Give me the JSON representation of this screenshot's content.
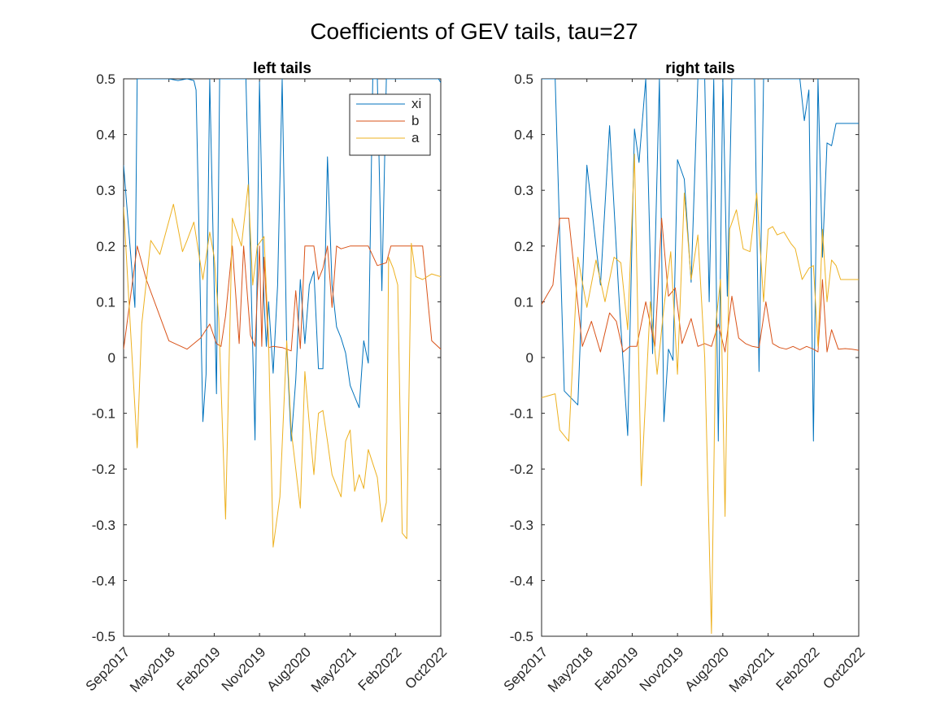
{
  "figure_title": "Coefficients of GEV tails, tau=27",
  "colors": {
    "xi": "#0072BD",
    "b": "#D95319",
    "a": "#EDB120",
    "axes": "#262626"
  },
  "chart_data": [
    {
      "type": "line",
      "title": "left tails",
      "xlabel": "",
      "ylabel": "",
      "ylim": [
        -0.5,
        0.5
      ],
      "yticks": [
        "-0.5",
        "-0.4",
        "-0.3",
        "-0.2",
        "-0.1",
        "0",
        "0.1",
        "0.2",
        "0.3",
        "0.4",
        "0.5"
      ],
      "xticks": [
        "Sep2017",
        "May2018",
        "Feb2019",
        "Nov2019",
        "Aug2020",
        "May2021",
        "Feb2022",
        "Oct2022"
      ],
      "legend": {
        "position": "top-right",
        "entries": [
          "xi",
          "b",
          "a"
        ]
      },
      "grid": false,
      "series": [
        {
          "name": "xi",
          "color": "#0072BD",
          "x": [
            0,
            0.17,
            0.25,
            0.3,
            0.5,
            0.8,
            1.0,
            1.2,
            1.4,
            1.55,
            1.6,
            1.75,
            1.82,
            1.9,
            2.05,
            2.12,
            2.2,
            2.3,
            2.4,
            2.5,
            2.7,
            2.9,
            3.0,
            3.1,
            3.15,
            3.2,
            3.3,
            3.4,
            3.5,
            3.6,
            3.7,
            3.8,
            3.9,
            4.0,
            4.1,
            4.2,
            4.3,
            4.4,
            4.5,
            4.6,
            4.7,
            4.8,
            4.9,
            5.0,
            5.1,
            5.2,
            5.3,
            5.4,
            5.5,
            5.6,
            5.7,
            5.8,
            5.9,
            6.0,
            6.1,
            6.2,
            6.25,
            6.3,
            6.4,
            6.5,
            6.6,
            6.7,
            6.8,
            6.95,
            7.0
          ],
          "y": [
            0.345,
            0.17,
            0.09,
            0.5,
            0.5,
            0.5,
            0.5,
            0.497,
            0.5,
            0.497,
            0.48,
            -0.115,
            -0.03,
            0.5,
            -0.065,
            0.5,
            0.5,
            0.5,
            0.5,
            0.5,
            0.5,
            -0.148,
            0.495,
            0.1,
            0.02,
            0.1,
            -0.028,
            0.13,
            0.5,
            0.02,
            -0.15,
            -0.04,
            0.14,
            0.025,
            0.13,
            0.155,
            -0.02,
            -0.02,
            0.36,
            0.13,
            0.055,
            0.035,
            0.008,
            -0.05,
            -0.07,
            -0.09,
            0.03,
            -0.01,
            0.5,
            0.5,
            0.12,
            0.5,
            0.5,
            0.5,
            0.5,
            0.5,
            0.5,
            0.5,
            0.5,
            0.5,
            0.5,
            0.5,
            0.5,
            0.5,
            0.493
          ]
        },
        {
          "name": "b",
          "color": "#D95319",
          "x": [
            0,
            0.3,
            0.5,
            1.0,
            1.4,
            1.7,
            1.9,
            2.05,
            2.15,
            2.25,
            2.4,
            2.55,
            2.65,
            2.8,
            2.9,
            3.0,
            3.05,
            3.1,
            3.2,
            3.3,
            3.5,
            3.7,
            3.8,
            3.9,
            4.0,
            4.1,
            4.2,
            4.3,
            4.4,
            4.5,
            4.6,
            4.7,
            4.8,
            5.0,
            5.2,
            5.4,
            5.6,
            5.8,
            5.9,
            6.0,
            6.1,
            6.2,
            6.4,
            6.6,
            6.8,
            7.0
          ],
          "y": [
            0.015,
            0.2,
            0.14,
            0.03,
            0.015,
            0.035,
            0.06,
            0.025,
            0.02,
            0.075,
            0.2,
            0.025,
            0.2,
            0.04,
            0.02,
            0.2,
            0.02,
            0.18,
            0.018,
            0.02,
            0.018,
            0.012,
            0.12,
            0.016,
            0.2,
            0.2,
            0.2,
            0.14,
            0.16,
            0.2,
            0.09,
            0.2,
            0.195,
            0.2,
            0.2,
            0.2,
            0.165,
            0.17,
            0.2,
            0.2,
            0.2,
            0.2,
            0.2,
            0.2,
            0.03,
            0.015
          ]
        },
        {
          "name": "a",
          "color": "#EDB120",
          "x": [
            0,
            0.3,
            0.4,
            0.6,
            0.8,
            1.1,
            1.3,
            1.4,
            1.55,
            1.75,
            1.9,
            2.0,
            2.1,
            2.25,
            2.4,
            2.6,
            2.75,
            2.85,
            2.95,
            3.1,
            3.2,
            3.3,
            3.45,
            3.6,
            3.7,
            3.8,
            3.9,
            4.0,
            4.1,
            4.2,
            4.3,
            4.4,
            4.5,
            4.6,
            4.7,
            4.8,
            4.9,
            5.0,
            5.1,
            5.2,
            5.3,
            5.4,
            5.5,
            5.6,
            5.7,
            5.8,
            5.85,
            5.95,
            6.05,
            6.15,
            6.25,
            6.35,
            6.45,
            6.6,
            6.8,
            7.0
          ],
          "y": [
            0.27,
            -0.162,
            0.06,
            0.21,
            0.185,
            0.275,
            0.19,
            0.21,
            0.243,
            0.14,
            0.225,
            0.18,
            0.07,
            -0.29,
            0.25,
            0.2,
            0.31,
            0.13,
            0.2,
            0.217,
            0.03,
            -0.34,
            -0.25,
            0.03,
            -0.13,
            -0.2,
            -0.27,
            -0.025,
            -0.12,
            -0.21,
            -0.1,
            -0.095,
            -0.15,
            -0.21,
            -0.23,
            -0.25,
            -0.15,
            -0.13,
            -0.24,
            -0.21,
            -0.235,
            -0.165,
            -0.19,
            -0.215,
            -0.295,
            -0.26,
            0.18,
            0.16,
            0.13,
            -0.315,
            -0.325,
            0.205,
            0.145,
            0.14,
            0.15,
            0.145
          ]
        }
      ]
    },
    {
      "type": "line",
      "title": "right tails",
      "xlabel": "",
      "ylabel": "",
      "ylim": [
        -0.5,
        0.5
      ],
      "yticks": [
        "-0.5",
        "-0.4",
        "-0.3",
        "-0.2",
        "-0.1",
        "0",
        "0.1",
        "0.2",
        "0.3",
        "0.4",
        "0.5"
      ],
      "xticks": [
        "Sep2017",
        "May2018",
        "Feb2019",
        "Nov2019",
        "Aug2020",
        "May2021",
        "Feb2022",
        "Oct2022"
      ],
      "legend": null,
      "grid": false,
      "series": [
        {
          "name": "xi",
          "color": "#0072BD",
          "x": [
            0,
            0.2,
            0.3,
            0.5,
            0.8,
            1.0,
            1.3,
            1.5,
            1.7,
            1.9,
            2.05,
            2.15,
            2.3,
            2.45,
            2.6,
            2.7,
            2.8,
            2.9,
            3.0,
            3.15,
            3.3,
            3.45,
            3.55,
            3.6,
            3.7,
            3.8,
            3.9,
            4.0,
            4.1,
            4.2,
            4.3,
            4.4,
            4.5,
            4.6,
            4.7,
            4.8,
            4.9,
            5.0,
            5.1,
            5.2,
            5.3,
            5.4,
            5.5,
            5.6,
            5.7,
            5.8,
            5.9,
            6.0,
            6.1,
            6.2,
            6.3,
            6.4,
            6.5,
            6.6,
            6.7,
            6.8,
            6.9,
            7.0
          ],
          "y": [
            0.5,
            0.5,
            0.5,
            -0.06,
            -0.085,
            0.345,
            0.13,
            0.416,
            0.12,
            -0.14,
            0.41,
            0.35,
            0.5,
            0.007,
            0.5,
            -0.115,
            0.015,
            -0.005,
            0.355,
            0.32,
            0.135,
            0.5,
            0.5,
            0.5,
            0.1,
            0.5,
            -0.15,
            0.5,
            0.11,
            0.5,
            0.5,
            0.5,
            0.5,
            0.5,
            0.5,
            -0.025,
            0.5,
            0.5,
            0.5,
            0.5,
            0.5,
            0.5,
            0.5,
            0.5,
            0.5,
            0.425,
            0.48,
            -0.15,
            0.5,
            0.18,
            0.385,
            0.38,
            0.42,
            0.42,
            0.42,
            0.42,
            0.42,
            0.42
          ]
        },
        {
          "name": "b",
          "color": "#D95319",
          "x": [
            0,
            0.25,
            0.4,
            0.6,
            0.9,
            1.1,
            1.3,
            1.5,
            1.65,
            1.8,
            1.95,
            2.1,
            2.3,
            2.5,
            2.65,
            2.8,
            2.95,
            3.1,
            3.3,
            3.45,
            3.6,
            3.75,
            3.9,
            4.05,
            4.2,
            4.35,
            4.5,
            4.65,
            4.8,
            4.95,
            5.1,
            5.25,
            5.4,
            5.55,
            5.7,
            5.85,
            6.0,
            6.1,
            6.2,
            6.3,
            6.4,
            6.55,
            6.7,
            6.85,
            7.0
          ],
          "y": [
            0.095,
            0.13,
            0.25,
            0.25,
            0.02,
            0.065,
            0.01,
            0.08,
            0.065,
            0.01,
            0.02,
            0.02,
            0.1,
            0.02,
            0.25,
            0.11,
            0.125,
            0.025,
            0.07,
            0.02,
            0.025,
            0.02,
            0.06,
            0.01,
            0.11,
            0.035,
            0.025,
            0.02,
            0.018,
            0.1,
            0.025,
            0.018,
            0.015,
            0.02,
            0.014,
            0.02,
            0.015,
            0.01,
            0.14,
            0.01,
            0.05,
            0.015,
            0.016,
            0.015,
            0.013
          ]
        },
        {
          "name": "a",
          "color": "#EDB120",
          "x": [
            0,
            0.3,
            0.4,
            0.6,
            0.8,
            1.0,
            1.2,
            1.4,
            1.6,
            1.75,
            1.9,
            2.05,
            2.2,
            2.4,
            2.55,
            2.7,
            2.85,
            3.0,
            3.15,
            3.3,
            3.45,
            3.6,
            3.75,
            3.85,
            3.95,
            4.05,
            4.15,
            4.3,
            4.45,
            4.6,
            4.75,
            4.9,
            5.0,
            5.1,
            5.2,
            5.35,
            5.5,
            5.6,
            5.75,
            5.9,
            6.0,
            6.1,
            6.2,
            6.3,
            6.4,
            6.5,
            6.6,
            6.75,
            6.9,
            7.0
          ],
          "y": [
            -0.072,
            -0.065,
            -0.13,
            -0.15,
            0.18,
            0.09,
            0.175,
            0.1,
            0.18,
            0.17,
            0.05,
            0.365,
            -0.23,
            0.1,
            -0.03,
            0.09,
            0.19,
            -0.03,
            0.295,
            0.14,
            0.22,
            0.0,
            -0.495,
            0.065,
            0.14,
            -0.285,
            0.23,
            0.265,
            0.195,
            0.19,
            0.295,
            0.1,
            0.23,
            0.235,
            0.22,
            0.225,
            0.205,
            0.195,
            0.14,
            0.16,
            0.165,
            0.02,
            0.23,
            0.1,
            0.175,
            0.165,
            0.14,
            0.14,
            0.14,
            0.14
          ]
        }
      ]
    }
  ]
}
